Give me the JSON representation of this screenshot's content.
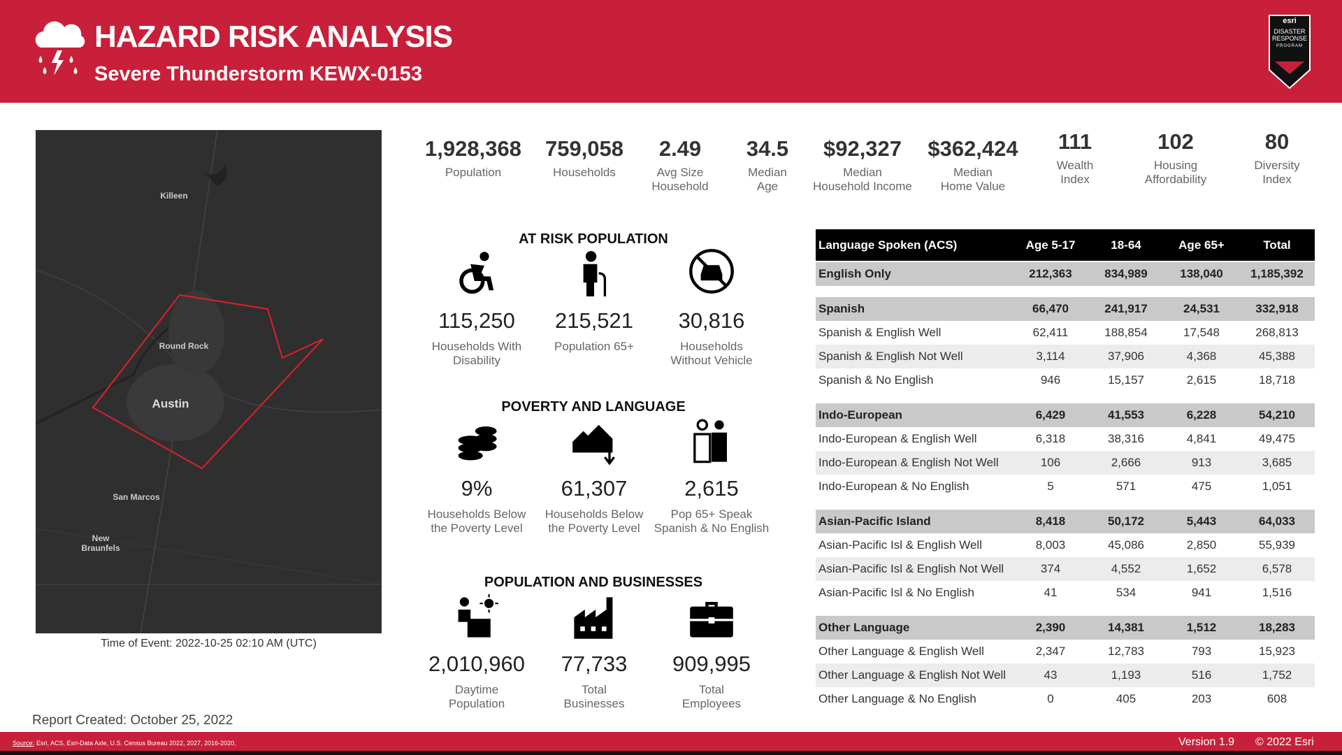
{
  "header": {
    "title": "HAZARD RISK ANALYSIS",
    "subtitle": "Severe Thunderstorm KEWX-0153",
    "logo_brand": "esri",
    "logo_title": "DISASTER\nRESPONSE",
    "logo_program": "PROGRAM"
  },
  "map": {
    "labels": [
      "Killeen",
      "Round Rock",
      "Austin",
      "San Marcos",
      "New\nBraunfels"
    ],
    "time": "Time of Event: 2022-10-25 02:10 AM (UTC)"
  },
  "report_created": "Report Created: October 25, 2022",
  "stats": [
    {
      "value": "1,928,368",
      "label": "Population"
    },
    {
      "value": "759,058",
      "label": "Households"
    },
    {
      "value": "2.49",
      "label": "Avg Size\nHousehold"
    },
    {
      "value": "34.5",
      "label": "Median\nAge"
    },
    {
      "value": "$92,327",
      "label": "Median\nHousehold Income"
    },
    {
      "value": "$362,424",
      "label": "Median\nHome Value"
    },
    {
      "value": "111",
      "label": "Wealth\nIndex"
    },
    {
      "value": "102",
      "label": "Housing\nAffordability"
    },
    {
      "value": "80",
      "label": "Diversity\nIndex"
    }
  ],
  "sections": [
    {
      "title": "AT RISK POPULATION",
      "items": [
        {
          "value": "115,250",
          "label": "Households With\nDisability"
        },
        {
          "value": "215,521",
          "label": "Population 65+"
        },
        {
          "value": "30,816",
          "label": "Households\nWithout Vehicle"
        }
      ]
    },
    {
      "title": "POVERTY AND LANGUAGE",
      "items": [
        {
          "value": "9%",
          "label": "Households Below\nthe Poverty Level"
        },
        {
          "value": "61,307",
          "label": "Households Below\nthe Poverty Level"
        },
        {
          "value": "2,615",
          "label": "Pop 65+ Speak\nSpanish & No English"
        }
      ]
    },
    {
      "title": "POPULATION AND BUSINESSES",
      "items": [
        {
          "value": "2,010,960",
          "label": "Daytime\nPopulation"
        },
        {
          "value": "77,733",
          "label": "Total\nBusinesses"
        },
        {
          "value": "909,995",
          "label": "Total\nEmployees"
        }
      ]
    }
  ],
  "table": {
    "header": [
      "Language Spoken (ACS)",
      "Age 5-17",
      "18-64",
      "Age 65+",
      "Total"
    ],
    "groups": [
      [
        [
          "English Only",
          "212,363",
          "834,989",
          "138,040",
          "1,185,392"
        ]
      ],
      [
        [
          "Spanish",
          "66,470",
          "241,917",
          "24,531",
          "332,918"
        ],
        [
          "Spanish & English Well",
          "62,411",
          "188,854",
          "17,548",
          "268,813"
        ],
        [
          "Spanish & English Not Well",
          "3,114",
          "37,906",
          "4,368",
          "45,388"
        ],
        [
          "Spanish & No English",
          "946",
          "15,157",
          "2,615",
          "18,718"
        ]
      ],
      [
        [
          "Indo-European",
          "6,429",
          "41,553",
          "6,228",
          "54,210"
        ],
        [
          "Indo-European & English Well",
          "6,318",
          "38,316",
          "4,841",
          "49,475"
        ],
        [
          "Indo-European & English Not Well",
          "106",
          "2,666",
          "913",
          "3,685"
        ],
        [
          "Indo-European & No English",
          "5",
          "571",
          "475",
          "1,051"
        ]
      ],
      [
        [
          "Asian-Pacific Island",
          "8,418",
          "50,172",
          "5,443",
          "64,033"
        ],
        [
          "Asian-Pacific Isl & English Well",
          "8,003",
          "45,086",
          "2,850",
          "55,939"
        ],
        [
          "Asian-Pacific Isl & English Not Well",
          "374",
          "4,552",
          "1,652",
          "6,578"
        ],
        [
          "Asian-Pacific Isl & No English",
          "41",
          "534",
          "941",
          "1,516"
        ]
      ],
      [
        [
          "Other Language",
          "2,390",
          "14,381",
          "1,512",
          "18,283"
        ],
        [
          "Other Language & English Well",
          "2,347",
          "12,783",
          "793",
          "15,923"
        ],
        [
          "Other Language & English Not Well",
          "43",
          "1,193",
          "516",
          "1,752"
        ],
        [
          "Other Language & No English",
          "0",
          "405",
          "203",
          "608"
        ]
      ]
    ]
  },
  "footer": {
    "source_label": "Source:",
    "source_text": "Esri, ACS, Esri-Data Axle, U.S. Census Bureau  2022, 2027, 2016-2020,",
    "version": "Version 1.9",
    "copyright": "© 2022 Esri"
  }
}
